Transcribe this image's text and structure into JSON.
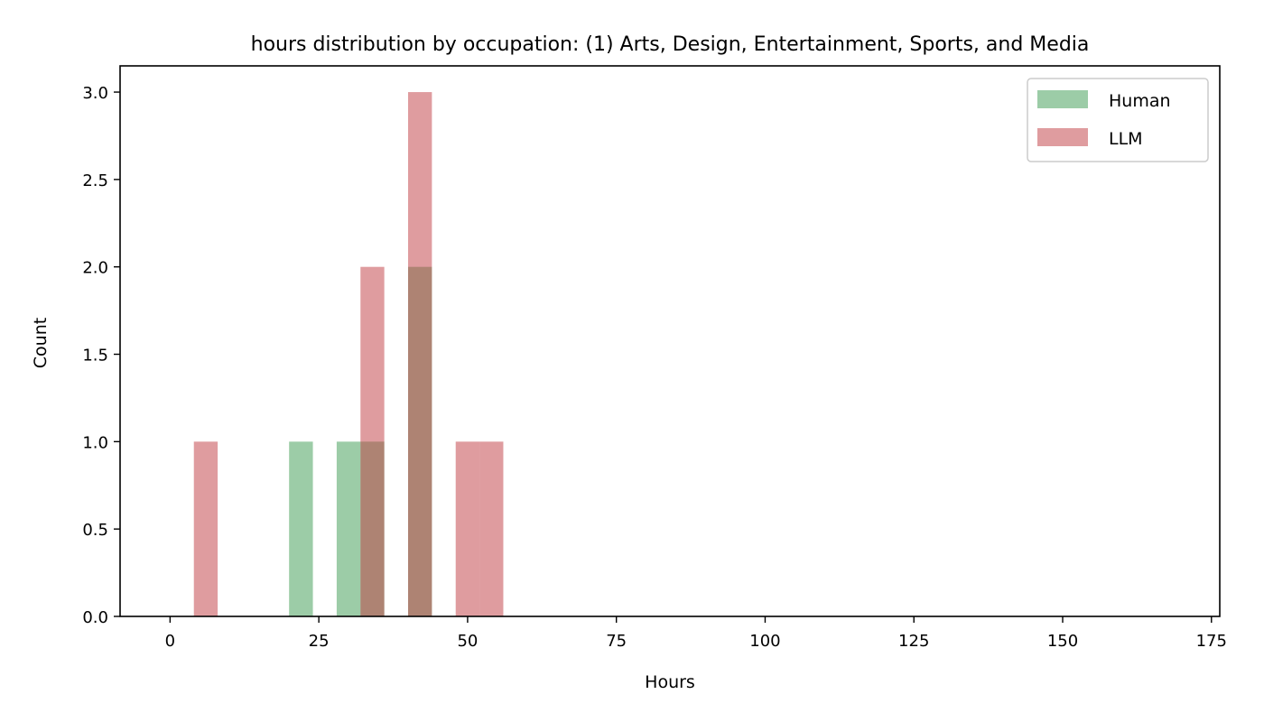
{
  "chart_data": {
    "type": "bar",
    "title": "hours distribution by occupation: (1) Arts, Design, Entertainment, Sports, and Media",
    "xlabel": "Hours",
    "ylabel": "Count",
    "xlim": [
      -8.4,
      176.4
    ],
    "ylim": [
      0,
      3.15
    ],
    "xticks": [
      0,
      25,
      50,
      75,
      100,
      125,
      150,
      175
    ],
    "yticks": [
      0.0,
      0.5,
      1.0,
      1.5,
      2.0,
      2.5,
      3.0
    ],
    "xtick_labels": [
      "0",
      "25",
      "50",
      "75",
      "100",
      "125",
      "150",
      "175"
    ],
    "ytick_labels": [
      "0.0",
      "0.5",
      "1.0",
      "1.5",
      "2.0",
      "2.5",
      "3.0"
    ],
    "bin_edges": [
      0,
      4,
      8,
      12,
      16,
      20,
      24,
      28,
      32,
      36,
      40,
      44,
      48,
      52,
      56,
      60,
      64,
      68,
      72,
      76,
      80,
      84,
      88,
      92,
      96,
      100,
      104,
      108,
      112,
      116,
      120,
      124,
      128,
      132,
      136,
      140,
      144,
      148,
      152,
      156,
      160,
      164,
      168
    ],
    "legend_position": "top-right",
    "grid": false,
    "series": [
      {
        "name": "Human",
        "color": "#3a9a4f",
        "opacity": 0.5,
        "counts": [
          0,
          0,
          0,
          0,
          0,
          1,
          0,
          1,
          1,
          0,
          2,
          0,
          0,
          0,
          0,
          0,
          0,
          0,
          0,
          0,
          0,
          0,
          0,
          0,
          0,
          0,
          0,
          0,
          0,
          0,
          0,
          0,
          0,
          0,
          0,
          0,
          0,
          0,
          0,
          0,
          0,
          0
        ]
      },
      {
        "name": "LLM",
        "color": "#c0393f",
        "opacity": 0.5,
        "counts": [
          0,
          1,
          0,
          0,
          0,
          0,
          0,
          0,
          2,
          0,
          3,
          0,
          1,
          1,
          0,
          0,
          0,
          0,
          0,
          0,
          0,
          0,
          0,
          0,
          0,
          0,
          0,
          0,
          0,
          0,
          0,
          0,
          0,
          0,
          0,
          0,
          0,
          0,
          0,
          0,
          0,
          0
        ]
      }
    ]
  }
}
